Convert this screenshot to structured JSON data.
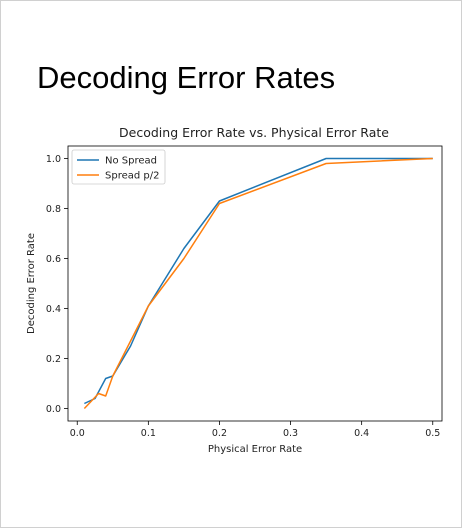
{
  "page": {
    "title": "Decoding Error Rates"
  },
  "chart_data": {
    "type": "line",
    "title": "Decoding Error Rate vs. Physical Error Rate",
    "xlabel": "Physical Error Rate",
    "ylabel": "Decoding Error Rate",
    "xlim": [
      -0.013,
      0.513
    ],
    "ylim": [
      -0.05,
      1.05
    ],
    "xticks": [
      "0.0",
      "0.1",
      "0.2",
      "0.3",
      "0.4",
      "0.5"
    ],
    "yticks": [
      "0.0",
      "0.2",
      "0.4",
      "0.6",
      "0.8",
      "1.0"
    ],
    "grid": false,
    "legend_position": "upper-left",
    "series": [
      {
        "name": "No Spread",
        "color": "#1f77b4",
        "x": [
          0.01,
          0.025,
          0.04,
          0.05,
          0.075,
          0.1,
          0.15,
          0.2,
          0.35,
          0.5
        ],
        "y": [
          0.02,
          0.04,
          0.12,
          0.13,
          0.25,
          0.41,
          0.64,
          0.83,
          1.0,
          1.0
        ]
      },
      {
        "name": "Spread p/2",
        "color": "#ff7f0e",
        "x": [
          0.01,
          0.02,
          0.03,
          0.04,
          0.05,
          0.075,
          0.1,
          0.15,
          0.2,
          0.35,
          0.5
        ],
        "y": [
          0.0,
          0.03,
          0.06,
          0.05,
          0.13,
          0.27,
          0.41,
          0.6,
          0.82,
          0.98,
          1.0
        ]
      }
    ]
  }
}
